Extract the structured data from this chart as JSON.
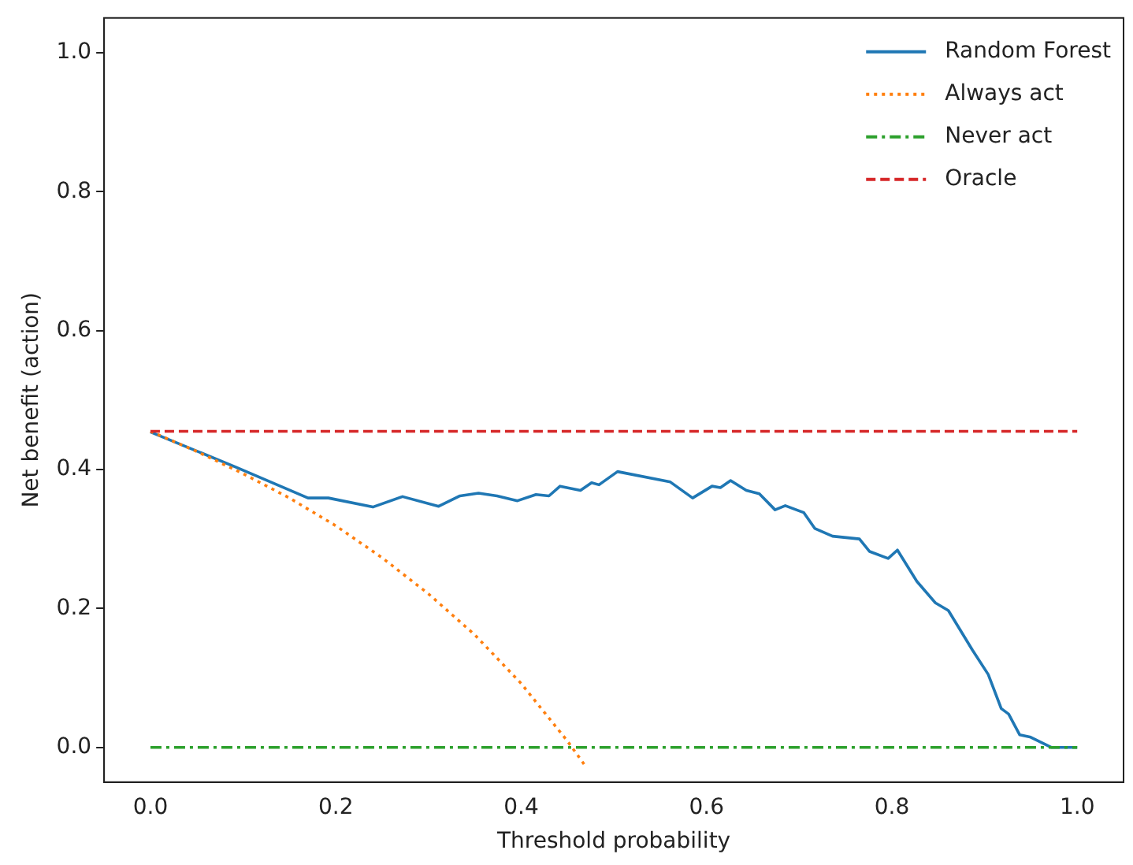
{
  "chart_data": {
    "type": "line",
    "xlabel": "Threshold probability",
    "ylabel": "Net benefit (action)",
    "xlim": [
      -0.05,
      1.05
    ],
    "ylim": [
      -0.05,
      1.05
    ],
    "xticks": [
      {
        "value": 0,
        "label": "0.0"
      },
      0.2,
      0.4,
      0.6,
      0.8,
      {
        "value": 1,
        "label": "1.0"
      }
    ],
    "yticks": [
      {
        "value": 0,
        "label": "0.0"
      },
      0.2,
      0.4,
      0.6,
      0.8,
      {
        "value": 1,
        "label": "1.0"
      }
    ],
    "legend": "top right",
    "grid": false,
    "series": [
      {
        "name": "Random Forest",
        "color": "#1f77b4",
        "line_style": "solid",
        "x": [
          0,
          0.093,
          0.17,
          0.192,
          0.24,
          0.272,
          0.311,
          0.334,
          0.354,
          0.374,
          0.396,
          0.416,
          0.43,
          0.442,
          0.464,
          0.476,
          0.484,
          0.504,
          0.561,
          0.585,
          0.606,
          0.615,
          0.626,
          0.643,
          0.657,
          0.674,
          0.685,
          0.705,
          0.717,
          0.736,
          0.765,
          0.776,
          0.796,
          0.806,
          0.827,
          0.847,
          0.861,
          0.887,
          0.904,
          0.918,
          0.926,
          0.938,
          0.949,
          0.972,
          1.0
        ],
        "values": [
          0.454,
          0.403,
          0.359,
          0.359,
          0.346,
          0.361,
          0.347,
          0.362,
          0.366,
          0.362,
          0.355,
          0.364,
          0.362,
          0.376,
          0.37,
          0.381,
          0.378,
          0.397,
          0.382,
          0.359,
          0.376,
          0.374,
          0.384,
          0.37,
          0.365,
          0.342,
          0.348,
          0.338,
          0.315,
          0.304,
          0.3,
          0.282,
          0.272,
          0.284,
          0.239,
          0.208,
          0.197,
          0.14,
          0.105,
          0.056,
          0.048,
          0.018,
          0.015,
          0.0,
          0.0
        ]
      },
      {
        "name": "Always act",
        "color": "#ff7f0e",
        "line_style": "dotted",
        "x": [
          0,
          0.05,
          0.1,
          0.15,
          0.2,
          0.25,
          0.3,
          0.35,
          0.4,
          0.45,
          0.47
        ],
        "values": [
          0.455,
          0.426,
          0.394,
          0.359,
          0.319,
          0.273,
          0.221,
          0.162,
          0.092,
          0.009,
          -0.028
        ]
      },
      {
        "name": "Never act",
        "color": "#2ca02c",
        "line_style": "dashdot",
        "x": [
          0,
          1
        ],
        "values": [
          0,
          0
        ]
      },
      {
        "name": "Oracle",
        "color": "#d62728",
        "line_style": "dashed",
        "x": [
          0,
          1
        ],
        "values": [
          0.455,
          0.455
        ]
      }
    ]
  }
}
